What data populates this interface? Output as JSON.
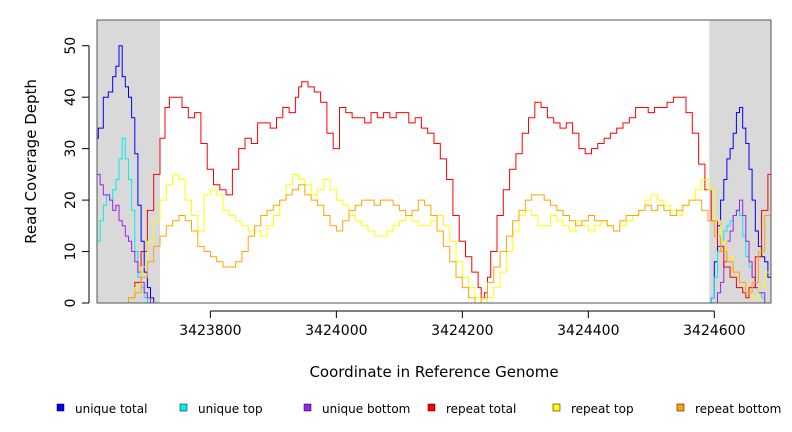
{
  "chart_data": {
    "type": "line",
    "title": "",
    "xlabel": "Coordinate in Reference Genome",
    "ylabel": "Read Coverage Depth",
    "xlim": [
      3423620,
      3424690
    ],
    "ylim": [
      0,
      55
    ],
    "xticks": [
      3423800,
      3424000,
      3424200,
      3424400,
      3424600
    ],
    "yticks": [
      0,
      10,
      20,
      30,
      40,
      50
    ],
    "shaded_regions": [
      [
        3423620,
        3423720
      ],
      [
        3424592,
        3424690
      ]
    ],
    "shade_color": "#d9d9d9",
    "series": [
      {
        "name": "unique total",
        "color": "#0000ff",
        "x": [
          3423620,
          3423622,
          3423630,
          3423638,
          3423645,
          3423650,
          3423655,
          3423660,
          3423665,
          3423670,
          3423675,
          3423680,
          3423685,
          3423690,
          3423695,
          3423700,
          3423705,
          3423710,
          3423715,
          3423720,
          3423722,
          3423725,
          3424585,
          3424590,
          3424595,
          3424600,
          3424605,
          3424610,
          3424615,
          3424620,
          3424625,
          3424630,
          3424635,
          3424640,
          3424645,
          3424650,
          3424655,
          3424660,
          3424665,
          3424670,
          3424675,
          3424680,
          3424685,
          3424690
        ],
        "values": [
          32,
          34,
          40,
          41,
          44,
          46,
          50,
          44,
          42,
          40,
          36,
          29,
          19,
          12,
          6,
          3,
          1,
          0,
          0,
          0,
          0,
          0,
          0,
          0,
          1,
          8,
          15,
          20,
          24,
          28,
          30,
          33,
          37,
          38,
          34,
          31,
          26,
          20,
          14,
          11,
          9,
          8,
          5,
          3
        ]
      },
      {
        "name": "unique top",
        "color": "#00eeee",
        "x": [
          3423620,
          3423625,
          3423630,
          3423635,
          3423640,
          3423645,
          3423650,
          3423655,
          3423660,
          3423665,
          3423670,
          3423675,
          3423680,
          3423685,
          3423690,
          3423695,
          3423700,
          3423705,
          3423710,
          3423720,
          3424590,
          3424595,
          3424600,
          3424605,
          3424610,
          3424615,
          3424620,
          3424625,
          3424630,
          3424635,
          3424640,
          3424645,
          3424650,
          3424655,
          3424660,
          3424665,
          3424670,
          3424675,
          3424680,
          3424690
        ],
        "values": [
          12,
          16,
          19,
          21,
          20,
          22,
          24,
          28,
          32,
          28,
          24,
          18,
          10,
          5,
          3,
          1,
          0,
          0,
          0,
          0,
          0,
          1,
          5,
          10,
          12,
          14,
          15,
          16,
          17,
          18,
          17,
          13,
          9,
          7,
          5,
          3,
          2,
          1,
          0,
          0
        ]
      },
      {
        "name": "unique bottom",
        "color": "#a020f0",
        "x": [
          3423620,
          3423625,
          3423630,
          3423635,
          3423640,
          3423645,
          3423650,
          3423655,
          3423660,
          3423665,
          3423670,
          3423675,
          3423680,
          3423685,
          3423690,
          3423695,
          3423700,
          3423705,
          3423710,
          3423720,
          3424590,
          3424600,
          3424605,
          3424610,
          3424615,
          3424620,
          3424625,
          3424630,
          3424635,
          3424640,
          3424645,
          3424650,
          3424655,
          3424660,
          3424665,
          3424670,
          3424680,
          3424690
        ],
        "values": [
          25,
          23,
          21,
          21,
          20,
          18,
          19,
          16,
          15,
          13,
          12,
          10,
          8,
          6,
          4,
          2,
          1,
          0,
          0,
          0,
          0,
          0,
          2,
          4,
          8,
          12,
          14,
          17,
          18,
          20,
          17,
          12,
          8,
          5,
          3,
          2,
          0,
          0
        ]
      },
      {
        "name": "repeat total",
        "color": "#ff0000",
        "x": [
          3423620,
          3423660,
          3423670,
          3423680,
          3423690,
          3423700,
          3423710,
          3423720,
          3423728,
          3423735,
          3423745,
          3423755,
          3423765,
          3423775,
          3423785,
          3423795,
          3423805,
          3423815,
          3423825,
          3423835,
          3423845,
          3423855,
          3423865,
          3423875,
          3423885,
          3423895,
          3423905,
          3423915,
          3423925,
          3423935,
          3423940,
          3423945,
          3423955,
          3423965,
          3423975,
          3423985,
          3423995,
          3424005,
          3424015,
          3424025,
          3424035,
          3424045,
          3424055,
          3424065,
          3424075,
          3424085,
          3424095,
          3424105,
          3424115,
          3424125,
          3424135,
          3424145,
          3424155,
          3424165,
          3424175,
          3424185,
          3424195,
          3424205,
          3424215,
          3424225,
          3424230,
          3424235,
          3424240,
          3424245,
          3424255,
          3424265,
          3424275,
          3424285,
          3424295,
          3424305,
          3424315,
          3424325,
          3424335,
          3424345,
          3424355,
          3424365,
          3424375,
          3424385,
          3424395,
          3424405,
          3424415,
          3424425,
          3424435,
          3424445,
          3424455,
          3424465,
          3424475,
          3424485,
          3424495,
          3424505,
          3424515,
          3424525,
          3424535,
          3424545,
          3424555,
          3424565,
          3424575,
          3424585,
          3424595,
          3424605,
          3424615,
          3424625,
          3424635,
          3424645,
          3424650,
          3424655,
          3424665,
          3424675,
          3424685,
          3424690
        ],
        "values": [
          0,
          0,
          1,
          4,
          10,
          18,
          25,
          32,
          38,
          40,
          40,
          38,
          36,
          37,
          31,
          26,
          23,
          22,
          21,
          26,
          30,
          32,
          31,
          35,
          35,
          34,
          36,
          38,
          37,
          40,
          42,
          43,
          42,
          41,
          39,
          33,
          30,
          38,
          37,
          36,
          36,
          35,
          37,
          36,
          37,
          36,
          37,
          37,
          35,
          36,
          34,
          33,
          31,
          28,
          24,
          17,
          12,
          9,
          6,
          3,
          1,
          2,
          5,
          10,
          17,
          22,
          26,
          29,
          33,
          36,
          39,
          38,
          36,
          35,
          34,
          35,
          33,
          30,
          29,
          30,
          31,
          32,
          33,
          34,
          35,
          36,
          38,
          38,
          37,
          38,
          38,
          39,
          40,
          40,
          37,
          33,
          27,
          22,
          16,
          11,
          7,
          5,
          3,
          2,
          1,
          3,
          9,
          18,
          25,
          28
        ]
      },
      {
        "name": "repeat top",
        "color": "#ffff00",
        "x": [
          3423620,
          3423660,
          3423670,
          3423680,
          3423690,
          3423700,
          3423710,
          3423720,
          3423730,
          3423740,
          3423750,
          3423760,
          3423770,
          3423780,
          3423790,
          3423800,
          3423810,
          3423820,
          3423830,
          3423840,
          3423850,
          3423860,
          3423870,
          3423880,
          3423890,
          3423900,
          3423910,
          3423920,
          3423930,
          3423940,
          3423950,
          3423960,
          3423970,
          3423980,
          3423990,
          3424000,
          3424010,
          3424020,
          3424030,
          3424040,
          3424050,
          3424060,
          3424070,
          3424080,
          3424090,
          3424100,
          3424110,
          3424120,
          3424130,
          3424140,
          3424150,
          3424160,
          3424170,
          3424180,
          3424190,
          3424200,
          3424210,
          3424220,
          3424230,
          3424240,
          3424250,
          3424260,
          3424270,
          3424280,
          3424290,
          3424300,
          3424310,
          3424320,
          3424330,
          3424340,
          3424350,
          3424360,
          3424370,
          3424380,
          3424390,
          3424400,
          3424410,
          3424420,
          3424430,
          3424440,
          3424450,
          3424460,
          3424470,
          3424480,
          3424490,
          3424500,
          3424510,
          3424520,
          3424530,
          3424540,
          3424550,
          3424560,
          3424570,
          3424580,
          3424590,
          3424600,
          3424610,
          3424620,
          3424630,
          3424640,
          3424650,
          3424660,
          3424670,
          3424680,
          3424690
        ],
        "values": [
          0,
          0,
          1,
          3,
          7,
          12,
          16,
          20,
          23,
          25,
          24,
          20,
          17,
          14,
          21,
          22,
          21,
          18,
          17,
          16,
          15,
          14,
          14,
          13,
          15,
          17,
          20,
          23,
          25,
          24,
          23,
          21,
          22,
          24,
          22,
          20,
          19,
          17,
          16,
          15,
          14,
          13,
          13,
          14,
          15,
          16,
          17,
          16,
          15,
          15,
          16,
          17,
          15,
          12,
          8,
          5,
          3,
          1,
          0,
          1,
          3,
          6,
          10,
          14,
          17,
          18,
          17,
          15,
          15,
          17,
          16,
          15,
          14,
          16,
          15,
          14,
          15,
          16,
          15,
          14,
          15,
          16,
          17,
          18,
          20,
          21,
          20,
          19,
          18,
          17,
          19,
          20,
          22,
          24,
          22,
          16,
          12,
          9,
          6,
          4,
          2,
          1,
          3,
          6,
          10
        ]
      },
      {
        "name": "repeat bottom",
        "color": "#ffa500",
        "x": [
          3423620,
          3423650,
          3423660,
          3423670,
          3423680,
          3423690,
          3423700,
          3423710,
          3423720,
          3423730,
          3423740,
          3423750,
          3423760,
          3423770,
          3423780,
          3423790,
          3423800,
          3423810,
          3423820,
          3423830,
          3423840,
          3423850,
          3423860,
          3423870,
          3423880,
          3423890,
          3423900,
          3423910,
          3423920,
          3423930,
          3423940,
          3423950,
          3423960,
          3423970,
          3423980,
          3423990,
          3424000,
          3424010,
          3424020,
          3424030,
          3424040,
          3424050,
          3424060,
          3424070,
          3424080,
          3424090,
          3424100,
          3424110,
          3424120,
          3424130,
          3424140,
          3424150,
          3424160,
          3424170,
          3424180,
          3424190,
          3424200,
          3424210,
          3424220,
          3424230,
          3424240,
          3424250,
          3424260,
          3424270,
          3424280,
          3424290,
          3424300,
          3424310,
          3424320,
          3424330,
          3424340,
          3424350,
          3424360,
          3424370,
          3424380,
          3424390,
          3424400,
          3424410,
          3424420,
          3424430,
          3424440,
          3424450,
          3424460,
          3424470,
          3424480,
          3424490,
          3424500,
          3424510,
          3424520,
          3424530,
          3424540,
          3424550,
          3424560,
          3424570,
          3424580,
          3424590,
          3424600,
          3424610,
          3424620,
          3424630,
          3424640,
          3424650,
          3424660,
          3424670,
          3424680,
          3424690
        ],
        "values": [
          0,
          0,
          0,
          1,
          2,
          5,
          8,
          11,
          13,
          15,
          16,
          17,
          16,
          14,
          11,
          10,
          9,
          8,
          7,
          7,
          8,
          10,
          13,
          15,
          17,
          18,
          19,
          20,
          21,
          22,
          23,
          21,
          20,
          19,
          17,
          15,
          14,
          16,
          18,
          19,
          20,
          20,
          19,
          20,
          20,
          19,
          18,
          17,
          18,
          20,
          19,
          17,
          14,
          11,
          8,
          5,
          3,
          1,
          0,
          1,
          4,
          7,
          10,
          13,
          16,
          18,
          20,
          21,
          21,
          20,
          19,
          18,
          17,
          16,
          15,
          16,
          17,
          16,
          16,
          15,
          14,
          16,
          17,
          17,
          18,
          19,
          18,
          19,
          18,
          17,
          18,
          19,
          20,
          20,
          18,
          16,
          13,
          10,
          8,
          6,
          4,
          2,
          4,
          10,
          17,
          24
        ]
      }
    ],
    "legend": [
      {
        "label": "unique total",
        "color": "#0000ff"
      },
      {
        "label": "unique top",
        "color": "#00eeee"
      },
      {
        "label": "unique bottom",
        "color": "#a020f0"
      },
      {
        "label": "repeat total",
        "color": "#ff0000"
      },
      {
        "label": "repeat top",
        "color": "#ffff00"
      },
      {
        "label": "repeat bottom",
        "color": "#ffa500"
      }
    ],
    "legend_position": "bottom"
  }
}
